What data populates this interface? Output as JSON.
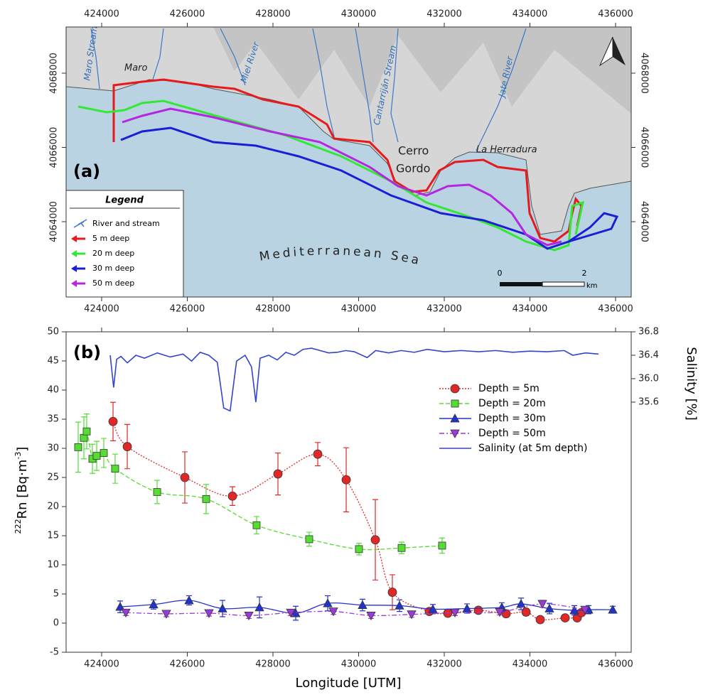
{
  "map": {
    "panel_label": "(a)",
    "xlim": [
      423170,
      436365
    ],
    "ylim": [
      4061971,
      4069244
    ],
    "xticks": [
      424000,
      426000,
      428000,
      430000,
      432000,
      434000,
      436000
    ],
    "yticks": [
      4064000,
      4066000,
      4068000
    ],
    "legend": {
      "title": "Legend",
      "items": [
        {
          "name": "River and stream",
          "color": "#3a78c9"
        },
        {
          "name": "5 m deep",
          "color": "#e8191c"
        },
        {
          "name": "20 m deep",
          "color": "#33e833"
        },
        {
          "name": "30 m deep",
          "color": "#1a1fd6"
        },
        {
          "name": "50 m deep",
          "color": "#b526e0"
        }
      ]
    },
    "labels": [
      "Maro Stream",
      "Maro",
      "Miel River",
      "Cantarriján Stream",
      "Jate River",
      "Cerro",
      "Gordo",
      "La Herradura"
    ],
    "sea_label": "Mediterranean Sea",
    "scale_bar": {
      "ticks": [
        "0",
        "2"
      ],
      "unit": "km"
    }
  },
  "chart_data": {
    "type": "line",
    "panel_label": "(b)",
    "x_label": "Longitude [UTM]",
    "y_label_parts": [
      "222",
      "Rn [Bq·m",
      "-3",
      "]"
    ],
    "y2_label": "Salinity [%]",
    "xlim": [
      423170,
      436365
    ],
    "xticks": [
      424000,
      426000,
      428000,
      430000,
      432000,
      434000,
      436000
    ],
    "ylim": [
      -5,
      50
    ],
    "yticks": [
      -5,
      0,
      5,
      10,
      15,
      20,
      25,
      30,
      35,
      40,
      45,
      50
    ],
    "y2lim": [
      31.33,
      36.8
    ],
    "y2ticks": [
      35.6,
      {
        "value": 36,
        "label": "36.0"
      },
      36.4,
      36.8
    ],
    "legend": "upper right",
    "series": [
      {
        "name": "Depth = 5m",
        "color": "#e02828",
        "marker": "circle",
        "line_style": "dotted",
        "x": [
          424266,
          424598,
          425942,
          427054,
          428116,
          429046,
          429710,
          430390,
          430788,
          431651,
          432083,
          432797,
          433444,
          433909,
          434241,
          434822,
          435104,
          435203
        ],
        "values": [
          34.6,
          30.3,
          25,
          21.8,
          25.6,
          29,
          24.6,
          14.3,
          5.3,
          2,
          1.7,
          2.2,
          1.6,
          1.9,
          0.6,
          0.9,
          0.9,
          1.8
        ],
        "errors": [
          3.3,
          3.8,
          4.4,
          1.6,
          3.6,
          2,
          5.5,
          6.9,
          3,
          0.5,
          0.4,
          0.4,
          0.6,
          0.6,
          0.4,
          0.4,
          0.4,
          0.5
        ]
      },
      {
        "name": "Depth = 20m",
        "color": "#55dd33",
        "marker": "square",
        "line_style": "dashed",
        "x": [
          423452,
          423585,
          423651,
          423784,
          423884,
          424050,
          424315,
          425295,
          426440,
          427618,
          428846,
          430008,
          431004,
          431950
        ],
        "values": [
          30.2,
          31.8,
          32.9,
          28.2,
          28.7,
          29.2,
          26.5,
          22.5,
          21.3,
          16.8,
          14.4,
          12.7,
          12.9,
          13.3
        ],
        "errors": [
          4.3,
          3.6,
          3,
          2.5,
          2.5,
          2.5,
          2.5,
          2,
          2.5,
          1.5,
          1.2,
          1,
          1,
          1.3
        ]
      },
      {
        "name": "Depth = 30m",
        "color": "#2233cc",
        "marker": "triangle-up",
        "line_style": "solid",
        "x": [
          424432,
          425212,
          426041,
          426822,
          427685,
          428531,
          429278,
          430091,
          430954,
          431734,
          432531,
          433344,
          433793,
          434456,
          435037,
          435369,
          435934
        ],
        "values": [
          2.8,
          3.2,
          3.9,
          2.5,
          2.7,
          1.7,
          3.4,
          3.1,
          3,
          2.4,
          2.5,
          2.7,
          3.3,
          2.5,
          2.2,
          2.3,
          2.3
        ],
        "errors": [
          1,
          0.8,
          0.8,
          1.4,
          1.8,
          1.2,
          1.3,
          1,
          1,
          0.8,
          0.8,
          0.8,
          1,
          0.9,
          0.8,
          0.7,
          0.6
        ]
      },
      {
        "name": "Depth = 50m",
        "color": "#9a3bd6",
        "marker": "triangle-down",
        "line_style": "dashdot",
        "x": [
          424564,
          425510,
          426506,
          427436,
          428415,
          429411,
          430290,
          431237,
          432249,
          433295,
          434290,
          435286
        ],
        "values": [
          1.8,
          1.6,
          1.7,
          1.3,
          1.8,
          2,
          1.3,
          1.5,
          1.8,
          1.9,
          3.3,
          2.3
        ],
        "errors": [
          0.5,
          0.5,
          0.5,
          0.5,
          0.5,
          0.5,
          0.5,
          0.5,
          0.5,
          0.5,
          0.6,
          0.5
        ]
      },
      {
        "name": "Salinity (at 5m depth)",
        "color": "#3344cc",
        "marker": "none",
        "line_style": "solid",
        "axis": "y2",
        "x": [
          424200,
          424280,
          424350,
          424450,
          424600,
          424800,
          425000,
          425300,
          425600,
          425900,
          426100,
          426300,
          426500,
          426700,
          426850,
          427000,
          427150,
          427350,
          427500,
          427600,
          427700,
          427900,
          428100,
          428300,
          428500,
          428700,
          428900,
          429100,
          429300,
          429500,
          429700,
          429900,
          430200,
          430400,
          430700,
          431000,
          431300,
          431600,
          432000,
          432400,
          432800,
          433200,
          433600,
          434000,
          434400,
          434800,
          435000,
          435300,
          435600
        ],
        "values": [
          36.4,
          35.85,
          36.33,
          36.38,
          36.27,
          36.4,
          36.35,
          36.44,
          36.37,
          36.42,
          36.3,
          36.45,
          36.4,
          36.28,
          35.5,
          35.45,
          36.3,
          36.4,
          36.2,
          35.6,
          36.35,
          36.4,
          36.32,
          36.45,
          36.4,
          36.5,
          36.52,
          36.48,
          36.44,
          36.45,
          36.48,
          36.46,
          36.36,
          36.48,
          36.44,
          36.48,
          36.45,
          36.5,
          36.46,
          36.48,
          36.46,
          36.48,
          36.45,
          36.47,
          36.46,
          36.48,
          36.4,
          36.44,
          36.42
        ]
      }
    ]
  }
}
